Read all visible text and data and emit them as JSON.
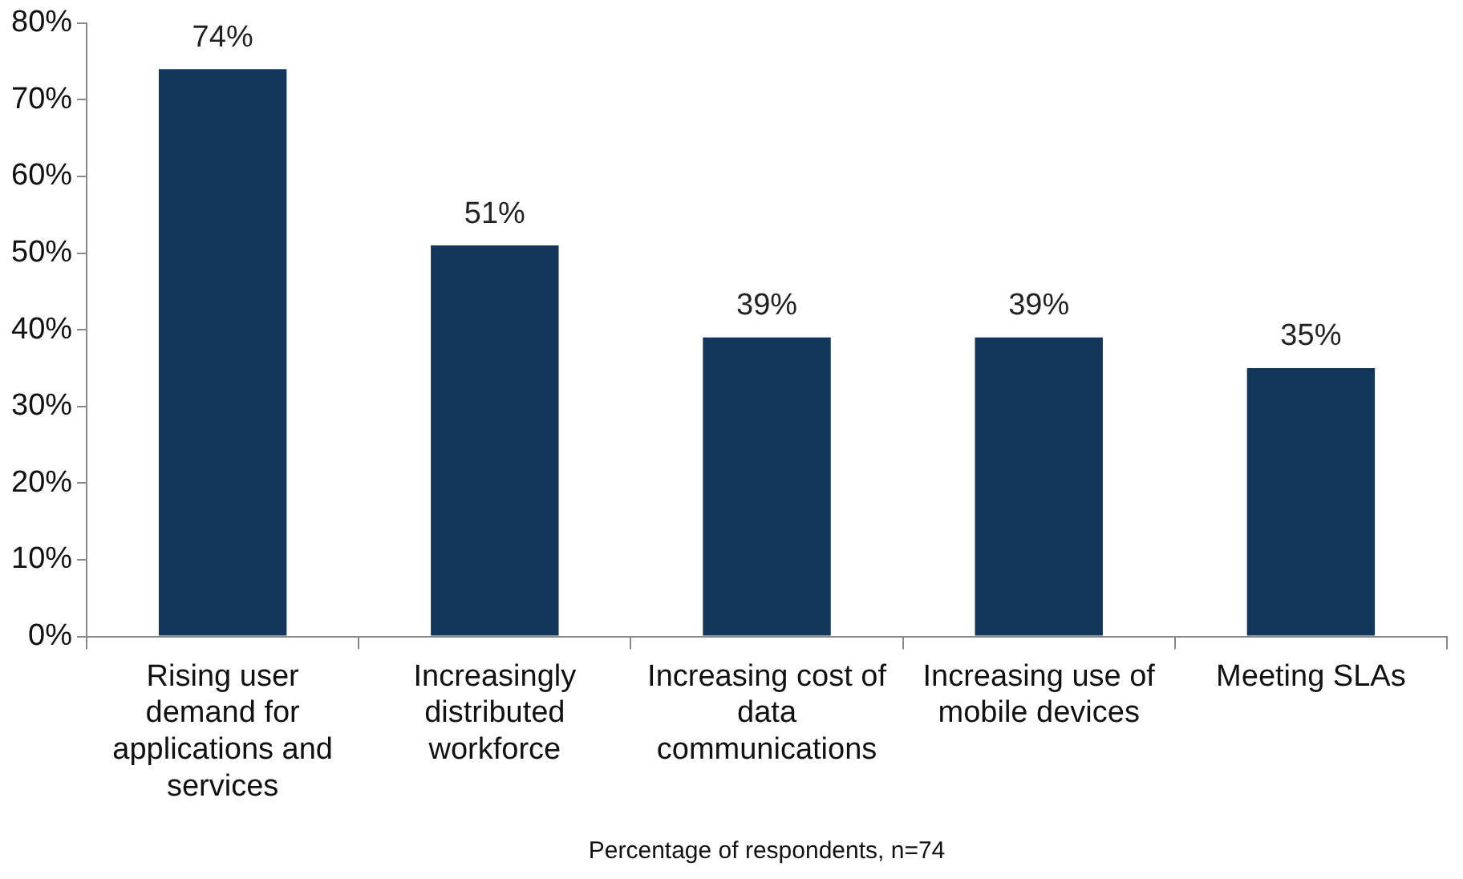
{
  "chart_data": {
    "type": "bar",
    "categories": [
      "Rising user demand for applications and services",
      "Increasingly distributed workforce",
      "Increasing cost of data communications",
      "Increasing use of mobile devices",
      "Meeting SLAs"
    ],
    "values": [
      74,
      51,
      39,
      39,
      35
    ],
    "value_labels": [
      "74%",
      "51%",
      "39%",
      "39%",
      "35%"
    ],
    "color": "#12375a",
    "ylim": [
      0,
      80
    ],
    "yticks": [
      {
        "value": 0,
        "label": "0%"
      },
      {
        "value": 10,
        "label": "10%"
      },
      {
        "value": 20,
        "label": "20%"
      },
      {
        "value": 30,
        "label": "30%"
      },
      {
        "value": 40,
        "label": "40%"
      },
      {
        "value": 50,
        "label": "50%"
      },
      {
        "value": 60,
        "label": "60%"
      },
      {
        "value": 70,
        "label": "70%"
      },
      {
        "value": 80,
        "label": "80%"
      }
    ],
    "xlabel": "Percentage of respondents, n=74",
    "grid": false,
    "legend": false
  }
}
